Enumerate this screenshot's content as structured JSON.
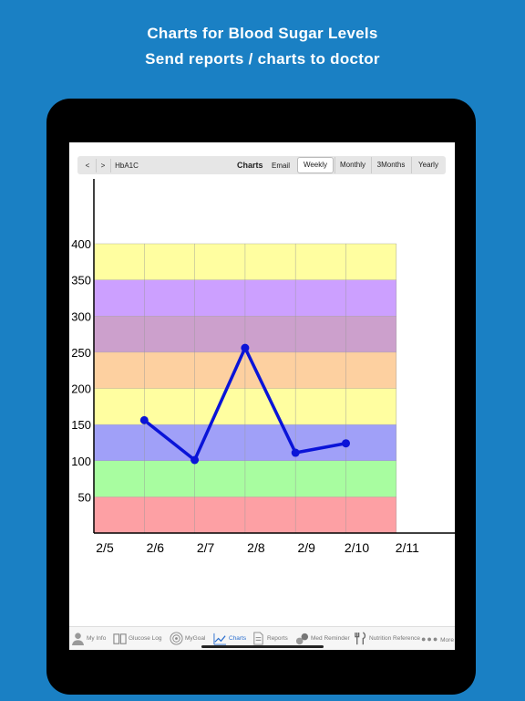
{
  "headline": {
    "line1": "Charts for Blood Sugar Levels",
    "line2": "Send reports / charts to doctor"
  },
  "toolbar": {
    "prev_label": "<",
    "next_label": ">",
    "hba1c_label": "HbA1C",
    "title": "Charts",
    "email_label": "Email",
    "segments": [
      "Weekly",
      "Monthly",
      "3Months",
      "Yearly"
    ],
    "selected_segment": "Weekly"
  },
  "tabbar": {
    "tabs": [
      {
        "label": "My Info",
        "icon": "person-icon"
      },
      {
        "label": "Glucose Log",
        "icon": "book-icon"
      },
      {
        "label": "MyGoal",
        "icon": "target-icon"
      },
      {
        "label": "Charts",
        "icon": "chart-icon"
      },
      {
        "label": "Reports",
        "icon": "document-icon"
      },
      {
        "label": "Med Reminder",
        "icon": "pills-icon"
      },
      {
        "label": "Nutrition Reference",
        "icon": "fork-knife-icon"
      },
      {
        "label": "More",
        "icon": "more-icon"
      }
    ],
    "active_tab": "Charts"
  },
  "chart_data": {
    "type": "line",
    "x": [
      "2/5",
      "2/6",
      "2/7",
      "2/8",
      "2/9",
      "2/10",
      "2/11"
    ],
    "y_ticks": [
      50,
      100,
      150,
      200,
      250,
      300,
      350,
      400
    ],
    "ylim": [
      0,
      400
    ],
    "series": [
      {
        "x": [
          "2/6",
          "2/7",
          "2/8",
          "2/9",
          "2/10"
        ],
        "values": [
          156,
          101,
          256,
          111,
          124
        ],
        "color": "#0a14d8"
      }
    ],
    "bands": [
      {
        "from": 0,
        "to": 50,
        "color": "#fda0a4"
      },
      {
        "from": 50,
        "to": 100,
        "color": "#a8fda0"
      },
      {
        "from": 100,
        "to": 150,
        "color": "#a0a0f8"
      },
      {
        "from": 150,
        "to": 200,
        "color": "#fffea0"
      },
      {
        "from": 200,
        "to": 250,
        "color": "#fdd0a0"
      },
      {
        "from": 250,
        "to": 300,
        "color": "#cca0cc"
      },
      {
        "from": 300,
        "to": 350,
        "color": "#cca0ff"
      },
      {
        "from": 350,
        "to": 400,
        "color": "#fffea0"
      }
    ],
    "grid": true
  }
}
